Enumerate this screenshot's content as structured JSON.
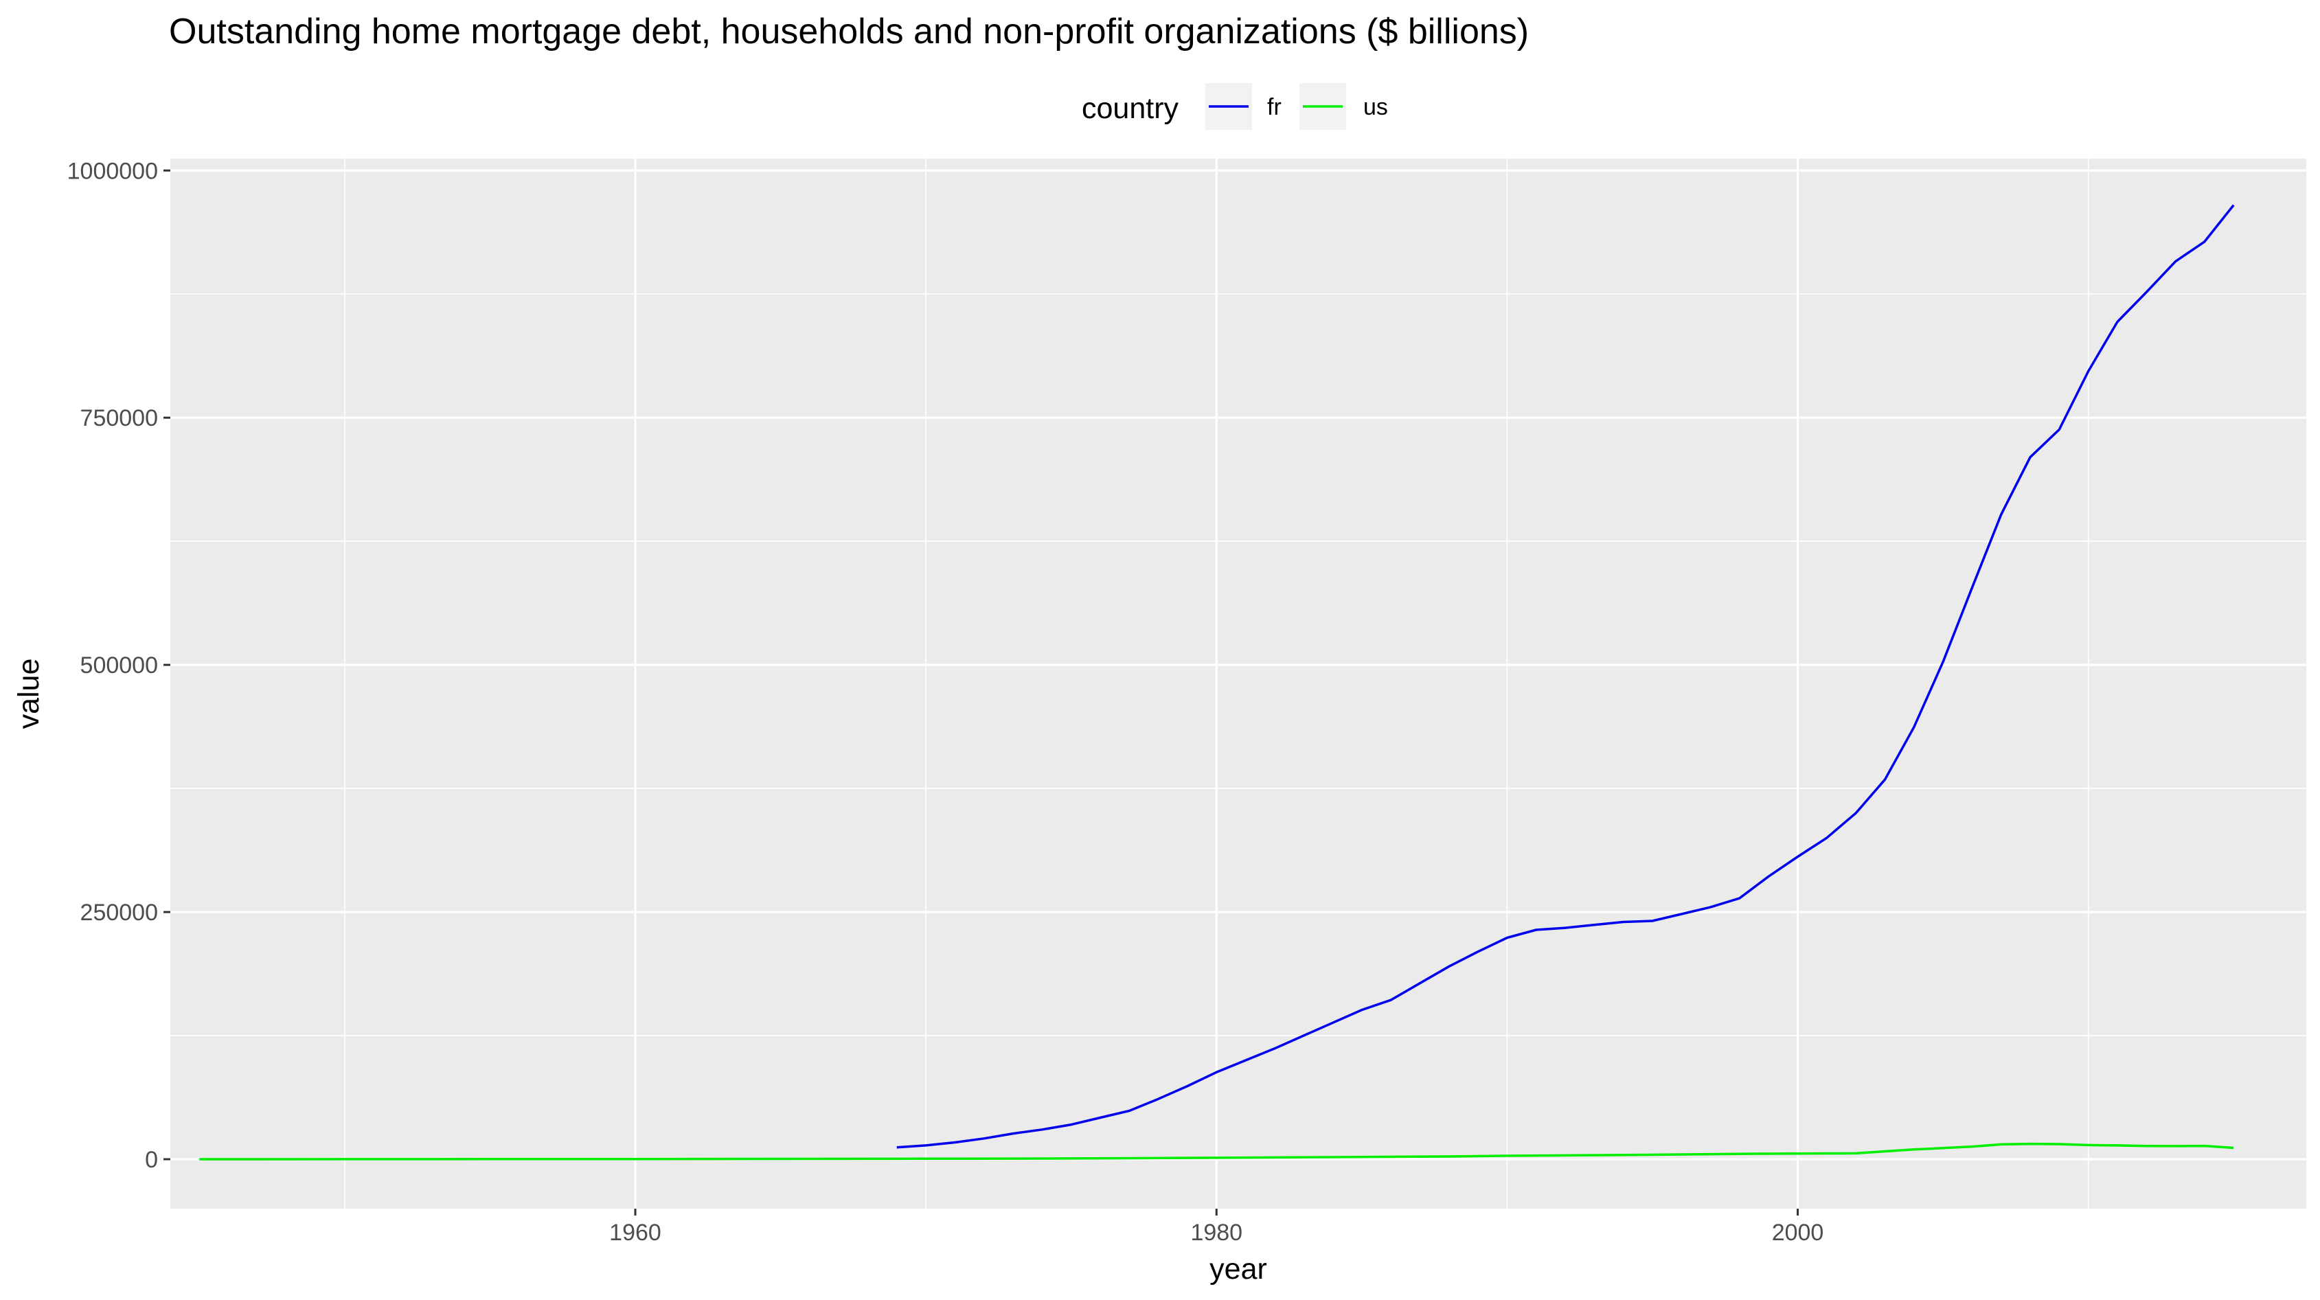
{
  "chart_data": {
    "type": "line",
    "title": "Outstanding home mortgage debt, households and non-profit organizations ($ billions)",
    "xlabel": "year",
    "ylabel": "value",
    "xlim": [
      1944,
      2017.5
    ],
    "ylim": [
      -50000,
      1012000
    ],
    "x_ticks": [
      1960,
      1980,
      2000
    ],
    "x_tick_labels": [
      "1960",
      "1980",
      "2000"
    ],
    "x_minor_ticks": [
      1950,
      1970,
      1990,
      2010
    ],
    "y_ticks": [
      0,
      250000,
      500000,
      750000,
      1000000
    ],
    "y_tick_labels": [
      "0",
      "250000",
      "500000",
      "750000",
      "1000000"
    ],
    "y_minor_ticks": [
      125000,
      375000,
      625000,
      875000
    ],
    "grid": true,
    "background": "#ebebeb",
    "legend": {
      "title": "country",
      "position": "top",
      "entries": [
        "fr",
        "us"
      ]
    },
    "series": [
      {
        "name": "fr",
        "color": "#0000ee",
        "x": [
          1969,
          1970,
          1971,
          1972,
          1973,
          1974,
          1975,
          1976,
          1977,
          1978,
          1979,
          1980,
          1981,
          1982,
          1983,
          1984,
          1985,
          1986,
          1987,
          1988,
          1989,
          1990,
          1991,
          1992,
          1993,
          1994,
          1995,
          1996,
          1997,
          1998,
          1999,
          2000,
          2001,
          2002,
          2003,
          2004,
          2005,
          2006,
          2007,
          2008,
          2009,
          2010,
          2011,
          2012,
          2013,
          2014,
          2015
        ],
        "values": [
          12000,
          14000,
          17000,
          21000,
          26000,
          30000,
          35000,
          42000,
          49000,
          61000,
          74000,
          88000,
          100000,
          112000,
          125000,
          138000,
          151000,
          161000,
          178000,
          195000,
          210000,
          224000,
          232000,
          234000,
          237000,
          240000,
          241000,
          248000,
          255000,
          264000,
          286000,
          306000,
          325000,
          350000,
          384000,
          437000,
          503000,
          578000,
          652000,
          710000,
          738000,
          797000,
          847000,
          877000,
          908000,
          928000,
          965000
        ]
      },
      {
        "name": "us",
        "color": "#00ee00",
        "x": [
          1945,
          1950,
          1955,
          1960,
          1965,
          1970,
          1975,
          1980,
          1985,
          1988,
          1990,
          1995,
          1998,
          2002,
          2004,
          2006,
          2007,
          2008,
          2009,
          2010,
          2011,
          2012,
          2013,
          2014,
          2015
        ],
        "values": [
          20,
          50,
          120,
          210,
          330,
          470,
          780,
          1460,
          2300,
          2800,
          3500,
          4500,
          5400,
          6000,
          9900,
          12800,
          15000,
          15600,
          15300,
          14300,
          14000,
          13400,
          13300,
          13500,
          11500
        ]
      }
    ]
  }
}
